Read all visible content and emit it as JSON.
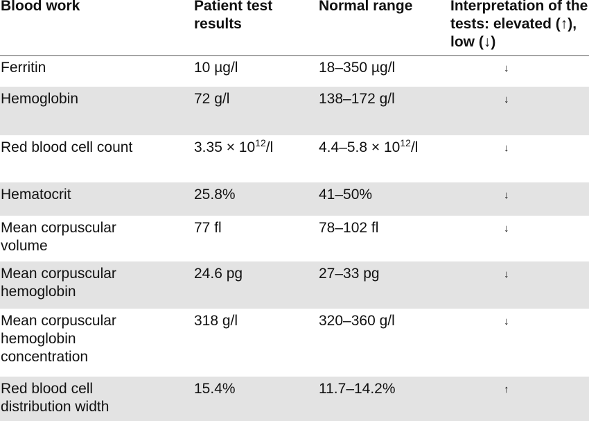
{
  "headers": {
    "blood_work": "Blood work",
    "patient_results": "Patient test results",
    "normal_range": "Normal range",
    "interpretation": "Interpretation of the tests: elevated (↑), low (↓)"
  },
  "rows": [
    {
      "test": "Ferritin",
      "result": "10 µg/l",
      "range": "18–350 µg/l",
      "interpretation": "↓"
    },
    {
      "test": "Hemoglobin",
      "result": "72 g/l",
      "range": "138–172 g/l",
      "interpretation": "↓"
    },
    {
      "test": "Red blood cell count",
      "result": "3.35 × 10",
      "result_exp": "12",
      "result_unit": "/l",
      "range": "4.4–5.8 × 10",
      "range_exp": "12",
      "range_unit": "/l",
      "interpretation": "↓"
    },
    {
      "test": "Hematocrit",
      "result": "25.8%",
      "range": "41–50%",
      "interpretation": "↓"
    },
    {
      "test": "Mean corpuscular volume",
      "result": "77 fl",
      "range": "78–102 fl",
      "interpretation": "↓"
    },
    {
      "test": "Mean corpuscular hemoglobin",
      "result": "24.6 pg",
      "range": "27–33 pg",
      "interpretation": "↓"
    },
    {
      "test": "Mean corpuscular hemoglobin concentration",
      "result": "318 g/l",
      "range": "320–360 g/l",
      "interpretation": "↓"
    },
    {
      "test": "Red blood cell distribution width",
      "result": "15.4%",
      "range": "11.7–14.2%",
      "interpretation": "↑"
    }
  ]
}
